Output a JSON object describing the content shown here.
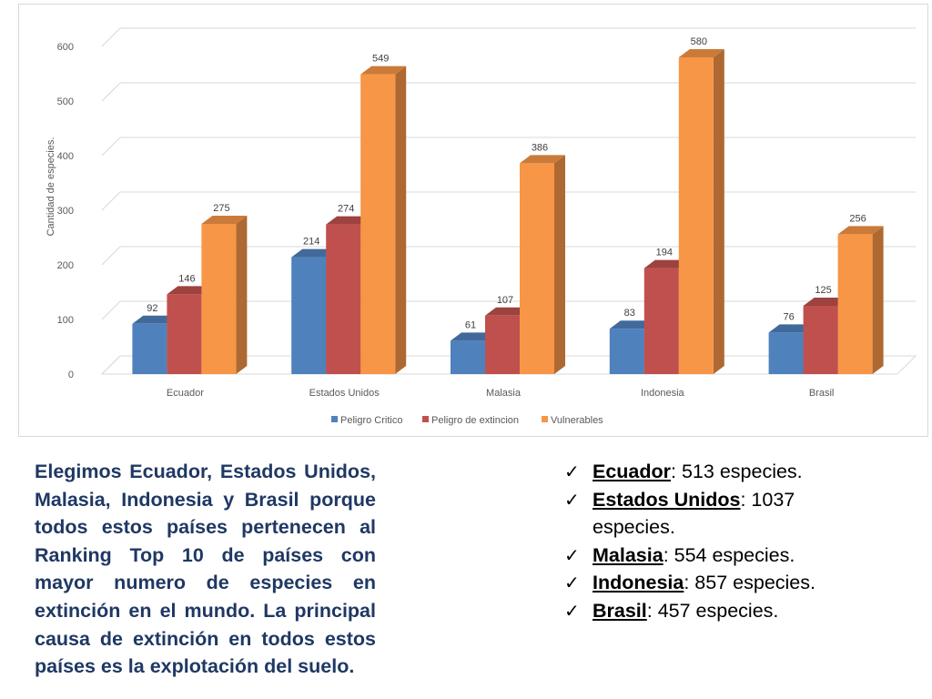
{
  "chart_data": {
    "type": "bar",
    "title": "",
    "xlabel": "",
    "ylabel": "Cantidad de especies.",
    "ylim": [
      0,
      600
    ],
    "yticks": [
      0,
      100,
      200,
      300,
      400,
      500,
      600
    ],
    "categories": [
      "Ecuador",
      "Estados Unidos",
      "Malasia",
      "Indonesia",
      "Brasil"
    ],
    "series": [
      {
        "name": "Peligro Critico",
        "color": "#4f81bd",
        "values": [
          92,
          214,
          61,
          83,
          76
        ]
      },
      {
        "name": "Peligro de extincion",
        "color": "#c0504d",
        "values": [
          146,
          274,
          107,
          194,
          125
        ]
      },
      {
        "name": "Vulnerables",
        "color": "#f79646",
        "values": [
          275,
          549,
          386,
          580,
          256
        ]
      }
    ],
    "grid": true,
    "legend": "bottom"
  },
  "text": {
    "description": "Elegimos Ecuador, Estados Unidos, Malasia, Indonesia y Brasil porque todos estos países pertenecen al Ranking Top 10 de países con mayor numero de especies en extinción en el mundo. La principal causa de extinción en todos estos países es la explotación del suelo.",
    "check_glyph": "✓"
  },
  "species_totals": [
    {
      "country": "Ecuador",
      "text": ": 513 especies."
    },
    {
      "country": "Estados Unidos",
      "text": ": 1037 especies."
    },
    {
      "country": "Malasia",
      "text": ": 554 especies."
    },
    {
      "country": "Indonesia",
      "text": ": 857 especies."
    },
    {
      "country": "Brasil",
      "text": ": 457 especies."
    }
  ]
}
